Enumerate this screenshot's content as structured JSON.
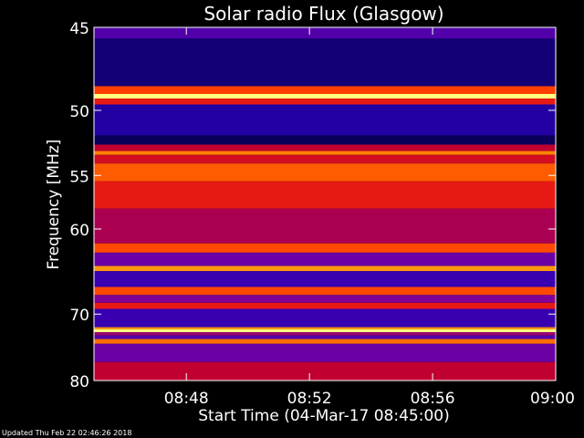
{
  "chart_data": {
    "type": "heatmap",
    "title": "Solar radio Flux (Glasgow)",
    "xlabel": "Start Time (04-Mar-17 08:45:00)",
    "ylabel": "Frequency [MHz]",
    "x_range": [
      "08:45",
      "09:00"
    ],
    "x_ticks": [
      "08:48",
      "08:52",
      "08:56",
      "09:00"
    ],
    "y_range_mhz": [
      45,
      80
    ],
    "y_ticks": [
      45,
      50,
      55,
      60,
      70,
      80
    ],
    "colormap": [
      "#00003c",
      "#2800b4",
      "#7a00a0",
      "#c00030",
      "#ff2a00",
      "#ff8c00",
      "#ffff80"
    ],
    "bands": [
      {
        "from_mhz": 45.0,
        "to_mhz": 45.6,
        "level": 0.25
      },
      {
        "from_mhz": 45.6,
        "to_mhz": 48.4,
        "level": 0.08
      },
      {
        "from_mhz": 48.4,
        "to_mhz": 48.9,
        "level": 0.7
      },
      {
        "from_mhz": 48.9,
        "to_mhz": 49.2,
        "level": 1.0
      },
      {
        "from_mhz": 49.2,
        "to_mhz": 49.6,
        "level": 0.6
      },
      {
        "from_mhz": 49.6,
        "to_mhz": 51.8,
        "level": 0.14
      },
      {
        "from_mhz": 51.8,
        "to_mhz": 52.5,
        "level": 0.04
      },
      {
        "from_mhz": 52.5,
        "to_mhz": 53.0,
        "level": 0.5
      },
      {
        "from_mhz": 53.0,
        "to_mhz": 53.3,
        "level": 0.82
      },
      {
        "from_mhz": 53.3,
        "to_mhz": 54.0,
        "level": 0.55
      },
      {
        "from_mhz": 54.0,
        "to_mhz": 55.5,
        "level": 0.75
      },
      {
        "from_mhz": 55.5,
        "to_mhz": 58.0,
        "level": 0.6
      },
      {
        "from_mhz": 58.0,
        "to_mhz": 61.5,
        "level": 0.45
      },
      {
        "from_mhz": 61.5,
        "to_mhz": 62.5,
        "level": 0.72
      },
      {
        "from_mhz": 62.5,
        "to_mhz": 64.0,
        "level": 0.3
      },
      {
        "from_mhz": 64.0,
        "to_mhz": 64.6,
        "level": 0.85
      },
      {
        "from_mhz": 64.6,
        "to_mhz": 66.5,
        "level": 0.2
      },
      {
        "from_mhz": 66.5,
        "to_mhz": 67.5,
        "level": 0.72
      },
      {
        "from_mhz": 67.5,
        "to_mhz": 68.5,
        "level": 0.35
      },
      {
        "from_mhz": 68.5,
        "to_mhz": 69.3,
        "level": 0.6
      },
      {
        "from_mhz": 69.3,
        "to_mhz": 71.8,
        "level": 0.2
      },
      {
        "from_mhz": 71.8,
        "to_mhz": 72.1,
        "level": 0.85
      },
      {
        "from_mhz": 72.1,
        "to_mhz": 72.5,
        "level": 1.0
      },
      {
        "from_mhz": 72.5,
        "to_mhz": 73.0,
        "level": 0.4
      },
      {
        "from_mhz": 73.0,
        "to_mhz": 73.5,
        "level": 0.25
      },
      {
        "from_mhz": 73.5,
        "to_mhz": 74.2,
        "level": 0.78
      },
      {
        "from_mhz": 74.2,
        "to_mhz": 77.0,
        "level": 0.3
      },
      {
        "from_mhz": 77.0,
        "to_mhz": 80.0,
        "level": 0.5
      }
    ]
  },
  "footer": {
    "updated": "Updated Thu Feb 22 02:46:26 2018"
  }
}
